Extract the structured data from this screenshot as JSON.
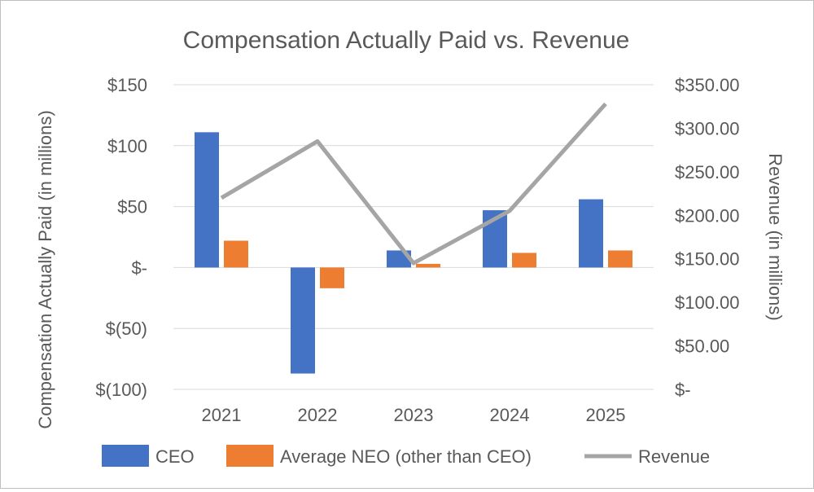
{
  "chart_data": {
    "type": "bar",
    "title": "Compensation Actually Paid vs. Revenue",
    "categories": [
      "2021",
      "2022",
      "2023",
      "2024",
      "2025"
    ],
    "series": [
      {
        "name": "CEO",
        "type": "bar",
        "axis": "left",
        "color": "#4472c4",
        "values": [
          111,
          -87,
          14,
          47,
          56
        ]
      },
      {
        "name": "Average NEO (other than CEO)",
        "type": "bar",
        "axis": "left",
        "color": "#ed7d31",
        "values": [
          22,
          -17,
          3,
          12,
          14
        ]
      },
      {
        "name": "Revenue",
        "type": "line",
        "axis": "right",
        "color": "#a5a5a5",
        "values": [
          220,
          285,
          145,
          205,
          328
        ]
      }
    ],
    "left_axis": {
      "label": "Compensation Actually Paid (in millions)",
      "min": -100,
      "max": 150,
      "step": 50,
      "ticks": [
        "$(100)",
        "$(50)",
        "$-",
        "$50",
        "$100",
        "$150"
      ]
    },
    "right_axis": {
      "label": "Revenue (in millions)",
      "min": 0,
      "max": 350,
      "step": 50,
      "ticks": [
        "$-",
        "$50.00",
        "$100.00",
        "$150.00",
        "$200.00",
        "$250.00",
        "$300.00",
        "$350.00"
      ]
    },
    "grid": true,
    "legend_position": "bottom"
  }
}
